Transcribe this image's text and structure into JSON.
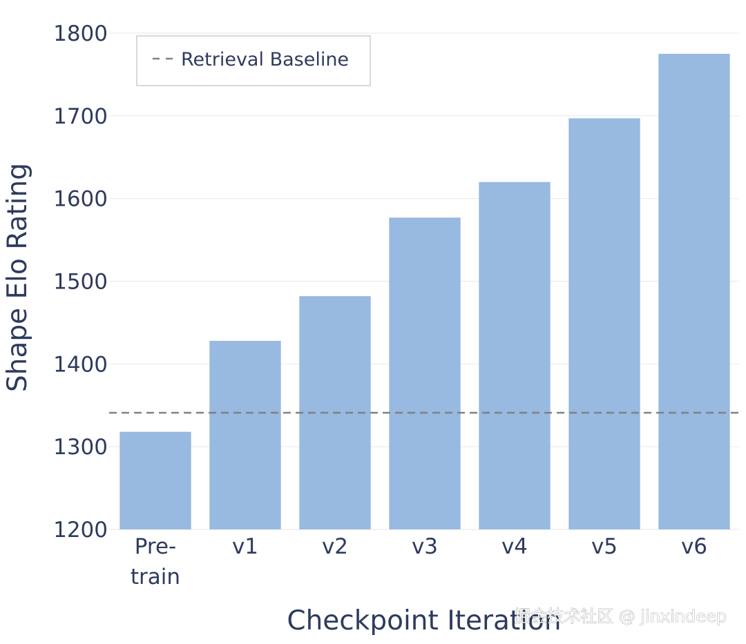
{
  "chart_data": {
    "type": "bar",
    "categories": [
      [
        "Pre-",
        "train"
      ],
      [
        "v1"
      ],
      [
        "v2"
      ],
      [
        "v3"
      ],
      [
        "v4"
      ],
      [
        "v5"
      ],
      [
        "v6"
      ]
    ],
    "values": [
      1318,
      1428,
      1482,
      1577,
      1620,
      1697,
      1775
    ],
    "baseline": {
      "name": "Retrieval Baseline",
      "value": 1341
    },
    "xlabel": "Checkpoint Iteration",
    "ylabel": "Shape Elo Rating",
    "ylim": [
      1200,
      1800
    ],
    "yticks": [
      1200,
      1300,
      1400,
      1500,
      1600,
      1700,
      1800
    ],
    "bar_color": "#98b9e0",
    "baseline_color": "#808080",
    "grid": true,
    "legend_position": "top-left"
  },
  "watermark": "掘金技术社区 @ jinxindeep"
}
